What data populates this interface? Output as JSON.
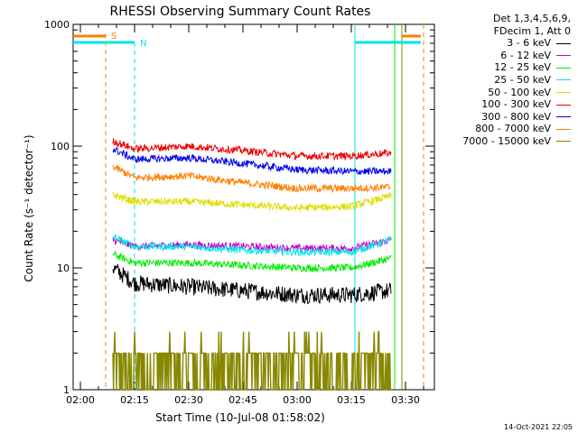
{
  "chart_data": {
    "type": "line",
    "title": "RHESSI Observing Summary Count Rates",
    "xlabel": "Start Time (10-Jul-08 01:58:02)",
    "ylabel": "Count Rate (s⁻¹ detector⁻¹)",
    "yscale": "log",
    "ylim": [
      1,
      1000
    ],
    "xlim": [
      "01:58",
      "03:38"
    ],
    "y_ticks": [
      "1",
      "10",
      "100",
      "1000"
    ],
    "x_ticks": [
      "02:00",
      "02:15",
      "02:30",
      "02:45",
      "03:00",
      "03:15",
      "03:30"
    ],
    "legend_header": [
      "Det 1,3,4,5,6,9,",
      "FDecim 1, Att 0"
    ],
    "legend_placement": "right",
    "series": [
      {
        "name": "3 - 6 keV",
        "color": "#000000",
        "x": [
          "02:09",
          "02:15",
          "02:30",
          "02:45",
          "03:00",
          "03:15",
          "03:26"
        ],
        "values": [
          10,
          7.5,
          7.0,
          6.5,
          6.0,
          6.0,
          6.5
        ]
      },
      {
        "name": "6 - 12 keV",
        "color": "#cc00cc",
        "x": [
          "02:09",
          "02:15",
          "02:30",
          "02:45",
          "03:00",
          "03:15",
          "03:26"
        ],
        "values": [
          17,
          15,
          15.5,
          15,
          14.5,
          14.5,
          17
        ]
      },
      {
        "name": "12 - 25 keV",
        "color": "#00ee00",
        "x": [
          "02:09",
          "02:15",
          "02:30",
          "02:45",
          "03:00",
          "03:15",
          "03:26"
        ],
        "values": [
          13,
          11,
          11,
          10.5,
          10,
          10,
          12
        ]
      },
      {
        "name": "25 - 50 keV",
        "color": "#00e5e5",
        "x": [
          "02:09",
          "02:15",
          "02:30",
          "02:45",
          "03:00",
          "03:15",
          "03:26"
        ],
        "values": [
          18,
          15,
          15,
          14,
          13.5,
          13.5,
          17
        ]
      },
      {
        "name": "50 - 100 keV",
        "color": "#dddd00",
        "x": [
          "02:09",
          "02:15",
          "02:30",
          "02:45",
          "03:00",
          "03:15",
          "03:26"
        ],
        "values": [
          40,
          35,
          35,
          33,
          31,
          32,
          39
        ]
      },
      {
        "name": "100 - 300 keV",
        "color": "#ee0000",
        "x": [
          "02:09",
          "02:15",
          "02:30",
          "02:45",
          "03:00",
          "03:15",
          "03:26"
        ],
        "values": [
          110,
          95,
          100,
          92,
          83,
          83,
          88
        ]
      },
      {
        "name": "300 - 800 keV",
        "color": "#0000ee",
        "x": [
          "02:09",
          "02:15",
          "02:30",
          "02:45",
          "03:00",
          "03:15",
          "03:26"
        ],
        "values": [
          95,
          78,
          80,
          72,
          64,
          62,
          62
        ]
      },
      {
        "name": "800 - 7000 keV",
        "color": "#ff7f00",
        "x": [
          "02:09",
          "02:15",
          "02:30",
          "02:45",
          "03:00",
          "03:15",
          "03:26"
        ],
        "values": [
          68,
          55,
          57,
          50,
          45,
          45,
          46
        ]
      },
      {
        "name": "7000 - 15000 keV",
        "color": "#888800",
        "x": [
          "02:09",
          "02:15",
          "02:30",
          "02:45",
          "03:00",
          "03:15",
          "03:26"
        ],
        "values": [
          2,
          2,
          2.5,
          2,
          1.6,
          2,
          2
        ]
      }
    ],
    "annotations": [
      {
        "label": "S",
        "color": "#ff7f00"
      },
      {
        "label": "N",
        "color": "#00e5e5"
      }
    ],
    "footer": "14-Oct-2021 22:05"
  }
}
